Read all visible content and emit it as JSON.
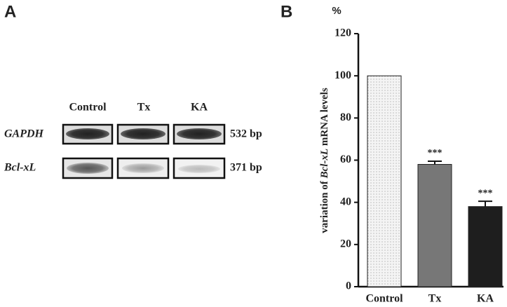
{
  "panel_labels": [
    "A",
    "B"
  ],
  "gel": {
    "lanes": [
      "Control",
      "Tx",
      "KA"
    ],
    "rows": [
      {
        "gene": "GAPDH",
        "size": "532 bp"
      },
      {
        "gene": "Bcl-xL",
        "size": "371 bp"
      }
    ]
  },
  "chart_data": {
    "type": "bar",
    "unit": "%",
    "ylabel": [
      "variation of ",
      "Bcl-xL",
      " mRNA levels"
    ],
    "categories": [
      "Control",
      "Tx",
      "KA"
    ],
    "values": [
      100,
      58,
      38
    ],
    "errors": [
      null,
      1.5,
      2.5
    ],
    "significance": [
      null,
      "***",
      "***"
    ],
    "colors": [
      "#f4f4f4",
      "#777777",
      "#1e1e1e"
    ],
    "ylim": [
      0,
      120
    ],
    "yticks": [
      0,
      20,
      40,
      60,
      80,
      100,
      120
    ]
  }
}
